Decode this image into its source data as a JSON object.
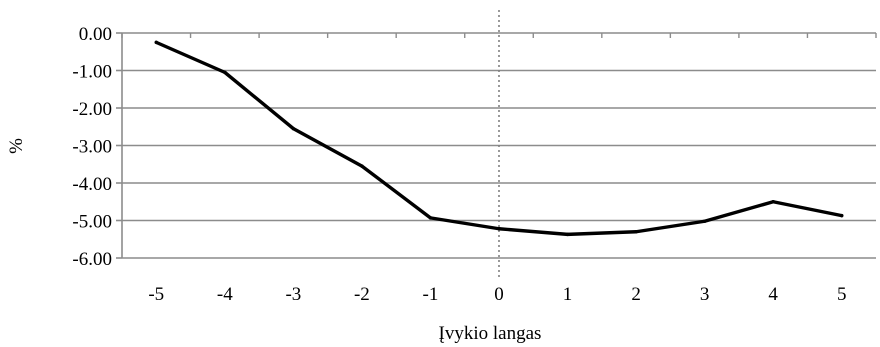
{
  "chart_data": {
    "type": "line",
    "title": "",
    "xlabel": "Įvykio langas",
    "ylabel": "%",
    "x": [
      -5,
      -4,
      -3,
      -2,
      -1,
      0,
      1,
      2,
      3,
      4,
      5
    ],
    "x_tick_labels": [
      "-5",
      "-4",
      "-3",
      "-2",
      "-1",
      "0",
      "1",
      "2",
      "3",
      "4",
      "5"
    ],
    "y_tick_labels": [
      "0.00",
      "-1.00",
      "-2.00",
      "-3.00",
      "-4.00",
      "-5.00",
      "-6.00"
    ],
    "y_ticks": [
      0,
      -1,
      -2,
      -3,
      -4,
      -5,
      -6
    ],
    "ylim": [
      -6,
      0
    ],
    "grid": true,
    "reference_line_x": 0,
    "series": [
      {
        "values": [
          -0.25,
          -1.05,
          -2.55,
          -3.55,
          -4.93,
          -5.22,
          -5.37,
          -5.3,
          -5.02,
          -4.5,
          -4.87
        ],
        "color": "#000000"
      }
    ],
    "colors": {
      "axis": "#8c8c8c",
      "grid": "#8c8c8c",
      "line": "#000000",
      "reference": "#808080"
    }
  }
}
